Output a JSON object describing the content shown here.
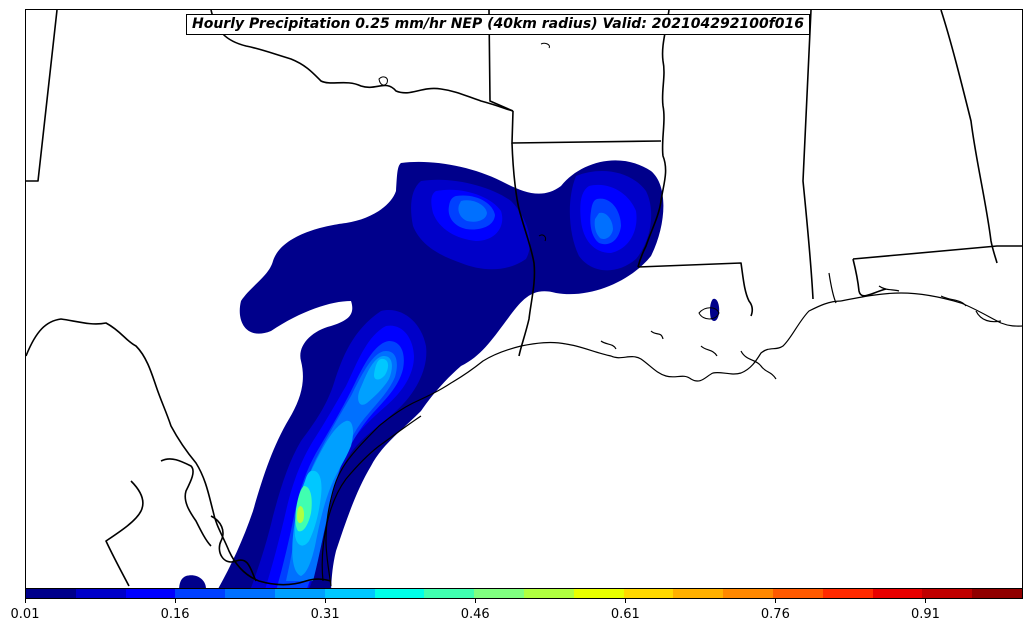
{
  "title": "Hourly Precipitation 0.25 mm/hr NEP (40km radius) Valid: 202104292100f016",
  "colorbar": {
    "colors": [
      "#00008b",
      "#0000c8",
      "#0000ff",
      "#0040ff",
      "#0070ff",
      "#00a0ff",
      "#00c8ff",
      "#00ffe8",
      "#40ffb0",
      "#80ff80",
      "#b0ff40",
      "#e8ff00",
      "#ffd800",
      "#ffb000",
      "#ff8800",
      "#ff5a00",
      "#ff2a00",
      "#e80000",
      "#c00000",
      "#900000"
    ],
    "tick_labels": [
      "0.01",
      "0.16",
      "0.31",
      "0.46",
      "0.61",
      "0.76",
      "0.91"
    ],
    "tick_positions": [
      0.0,
      0.1,
      0.2,
      0.3,
      0.4,
      0.5,
      0.6
    ]
  },
  "precip_colors": [
    "#00008b",
    "#0000c8",
    "#0000ff",
    "#0040ff",
    "#0070ff",
    "#00a0ff",
    "#00c8ff",
    "#40ffb0",
    "#b0ff40"
  ]
}
